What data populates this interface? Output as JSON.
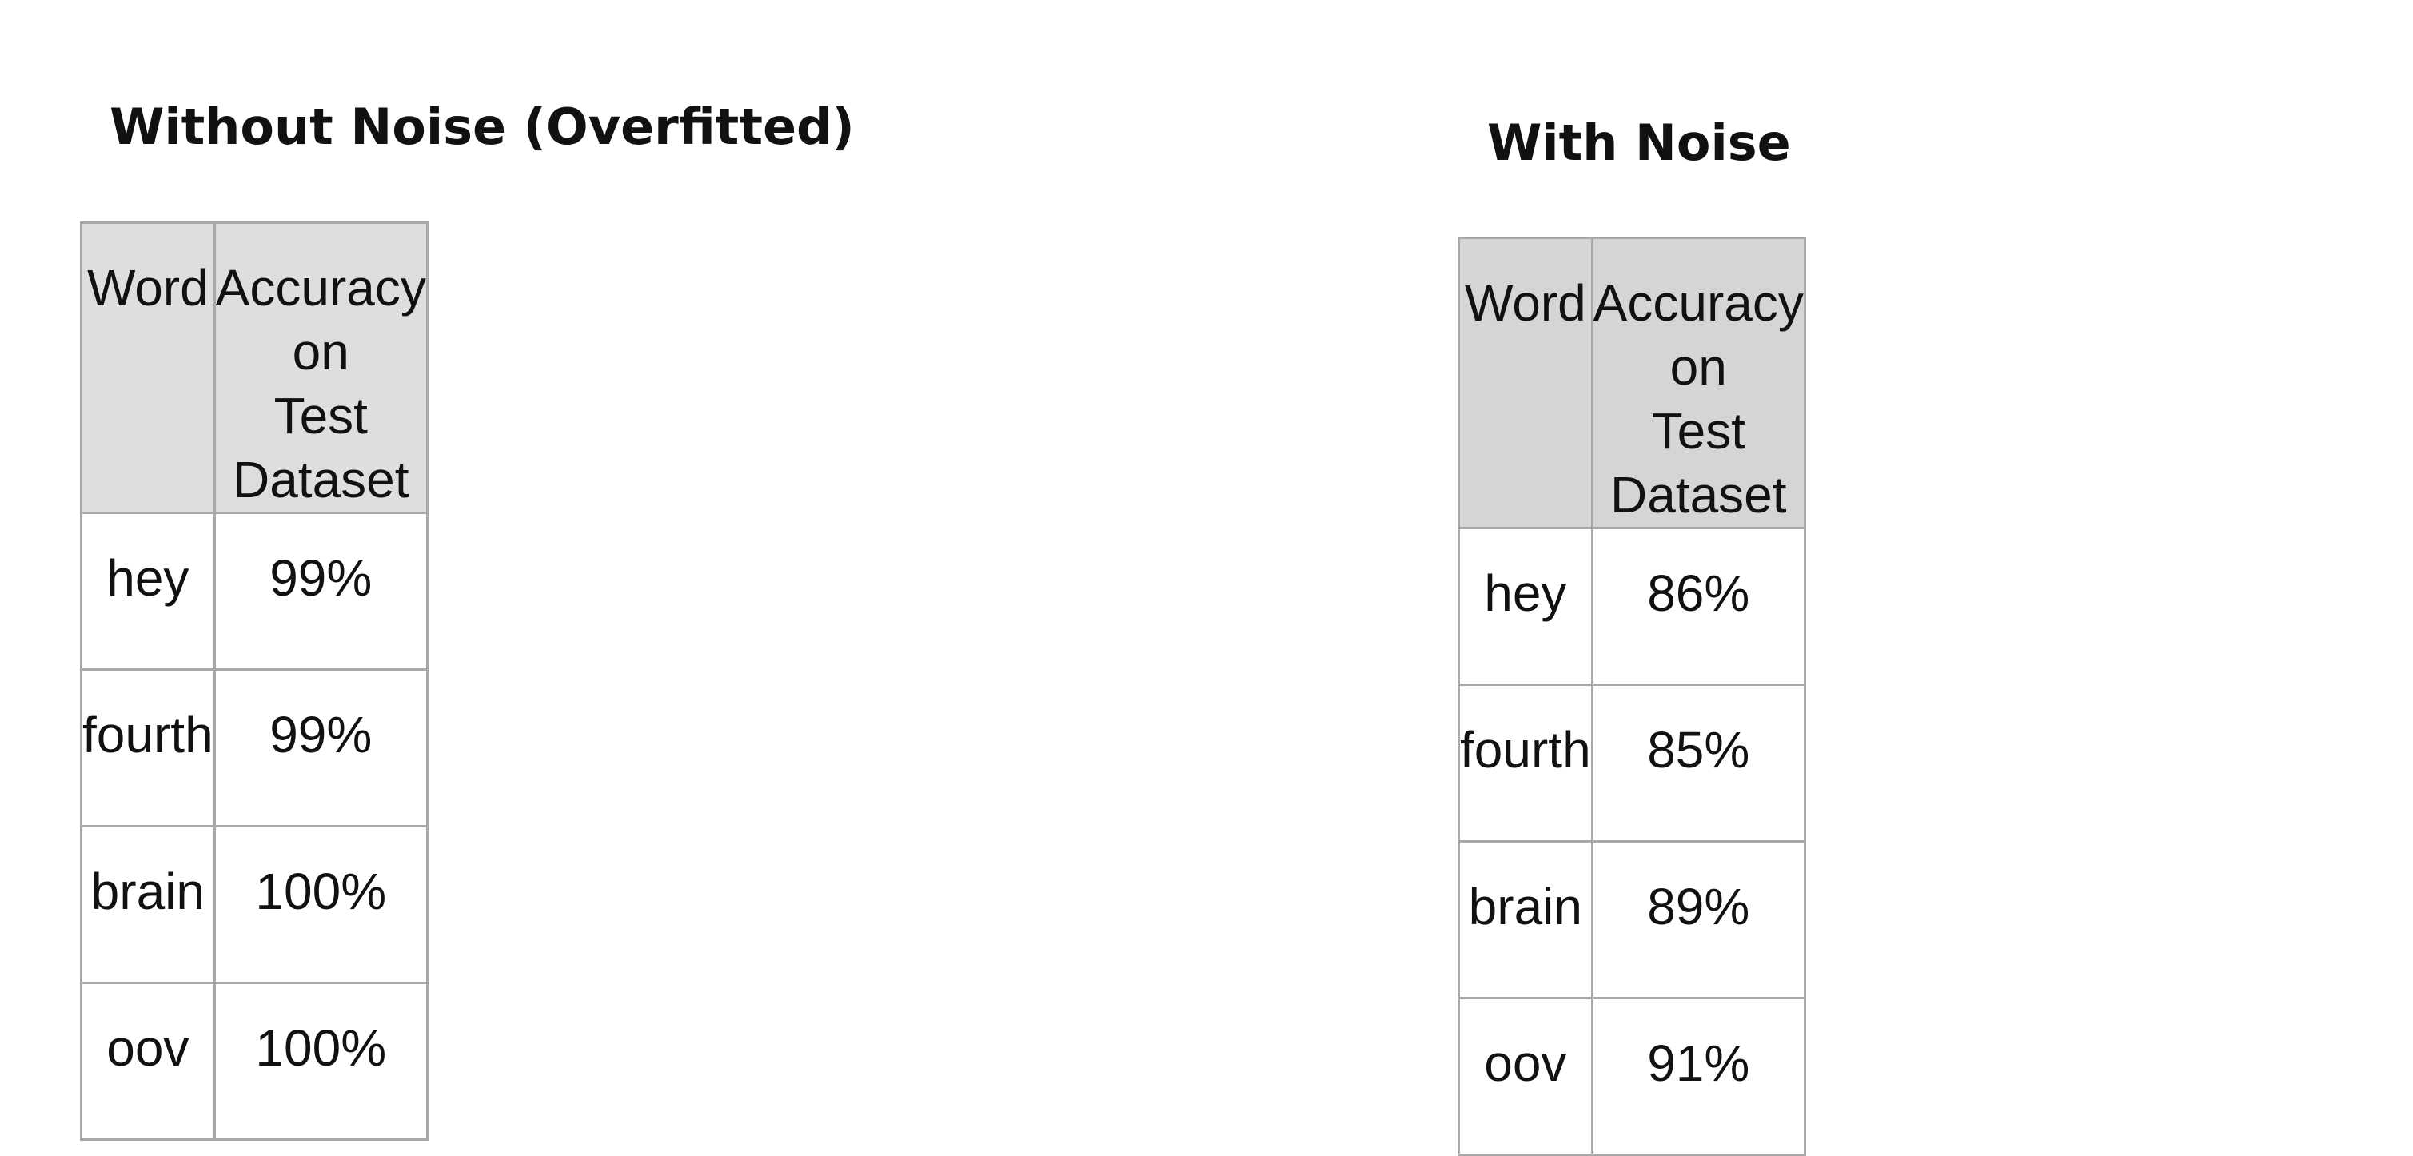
{
  "tables": [
    {
      "title": "Without Noise (Overfitted)",
      "headers": {
        "word": "Word",
        "accuracy_line1": "Accuracy on",
        "accuracy_line2": "Test Dataset"
      },
      "rows": [
        {
          "word": "hey",
          "accuracy": "99%"
        },
        {
          "word": "fourth",
          "accuracy": "99%"
        },
        {
          "word": "brain",
          "accuracy": "100%"
        },
        {
          "word": "oov",
          "accuracy": "100%"
        }
      ]
    },
    {
      "title": "With Noise",
      "headers": {
        "word": "Word",
        "accuracy_line1": "Accuracy on",
        "accuracy_line2": "Test Dataset"
      },
      "rows": [
        {
          "word": "hey",
          "accuracy": "86%"
        },
        {
          "word": "fourth",
          "accuracy": "85%"
        },
        {
          "word": "brain",
          "accuracy": "89%"
        },
        {
          "word": "oov",
          "accuracy": "91%"
        }
      ]
    }
  ],
  "colors": {
    "border": "#a8a8a8",
    "header_bg_left": "#dedede",
    "header_bg_right": "#d5d5d5",
    "text": "#111111"
  }
}
